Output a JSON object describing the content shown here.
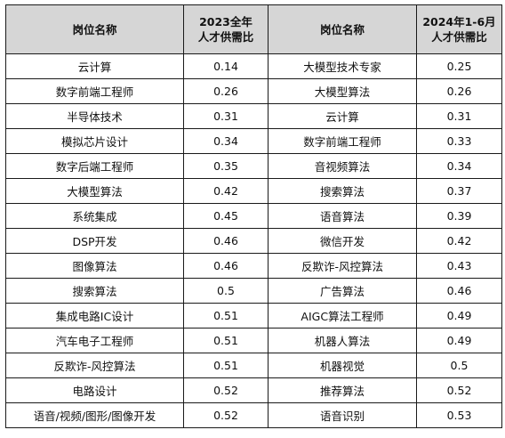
{
  "headers": {
    "col1": "岗位名称",
    "col2_line1": "2023全年",
    "col2_line2": "人才供需比",
    "col3": "岗位名称",
    "col4_line1": "2024年1-6月",
    "col4_line2": "人才供需比"
  },
  "rows": [
    {
      "job2023": "云计算",
      "ratio2023": "0.14",
      "job2024": "大模型技术专家",
      "ratio2024": "0.25"
    },
    {
      "job2023": "数字前端工程师",
      "ratio2023": "0.26",
      "job2024": "大模型算法",
      "ratio2024": "0.26"
    },
    {
      "job2023": "半导体技术",
      "ratio2023": "0.31",
      "job2024": "云计算",
      "ratio2024": "0.31"
    },
    {
      "job2023": "模拟芯片设计",
      "ratio2023": "0.34",
      "job2024": "数字前端工程师",
      "ratio2024": "0.33"
    },
    {
      "job2023": "数字后端工程师",
      "ratio2023": "0.35",
      "job2024": "音视频算法",
      "ratio2024": "0.34"
    },
    {
      "job2023": "大模型算法",
      "ratio2023": "0.42",
      "job2024": "搜索算法",
      "ratio2024": "0.37"
    },
    {
      "job2023": "系统集成",
      "ratio2023": "0.45",
      "job2024": "语音算法",
      "ratio2024": "0.39"
    },
    {
      "job2023": "DSP开发",
      "ratio2023": "0.46",
      "job2024": "微信开发",
      "ratio2024": "0.42"
    },
    {
      "job2023": "图像算法",
      "ratio2023": "0.46",
      "job2024": "反欺诈-风控算法",
      "ratio2024": "0.43"
    },
    {
      "job2023": "搜索算法",
      "ratio2023": "0.5",
      "job2024": "广告算法",
      "ratio2024": "0.46"
    },
    {
      "job2023": "集成电路IC设计",
      "ratio2023": "0.51",
      "job2024": "AIGC算法工程师",
      "ratio2024": "0.49"
    },
    {
      "job2023": "汽车电子工程师",
      "ratio2023": "0.51",
      "job2024": "机器人算法",
      "ratio2024": "0.49"
    },
    {
      "job2023": "反欺诈-风控算法",
      "ratio2023": "0.51",
      "job2024": "机器视觉",
      "ratio2024": "0.5"
    },
    {
      "job2023": "电路设计",
      "ratio2023": "0.52",
      "job2024": "推荐算法",
      "ratio2024": "0.52"
    },
    {
      "job2023": "语音/视频/图形/图像开发",
      "ratio2023": "0.52",
      "job2024": "语音识别",
      "ratio2024": "0.53"
    }
  ]
}
